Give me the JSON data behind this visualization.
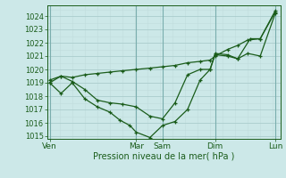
{
  "title": "",
  "xlabel": "Pression niveau de la mer( hPa )",
  "bg_color": "#cce8e8",
  "grid_color_major": "#aacccc",
  "grid_color_minor": "#c0dcdc",
  "line_color": "#1a5c1a",
  "ylim": [
    1014.8,
    1024.8
  ],
  "xlim": [
    0,
    9.3
  ],
  "ytick_vals": [
    1015,
    1016,
    1017,
    1018,
    1019,
    1020,
    1021,
    1022,
    1023,
    1024
  ],
  "xtick_labels": [
    "Ven",
    "Mar",
    "Sam",
    "Dim",
    "Lun"
  ],
  "xtick_positions": [
    0.1,
    3.55,
    4.6,
    6.7,
    9.1
  ],
  "vline_positions": [
    0.1,
    3.55,
    4.6,
    6.7,
    9.1
  ],
  "line1_x": [
    0.1,
    0.55,
    1.0,
    1.5,
    2.0,
    2.5,
    2.9,
    3.3,
    3.55,
    4.1,
    4.6,
    5.1,
    5.6,
    6.1,
    6.5,
    6.7,
    7.2,
    7.6,
    8.0,
    8.5,
    9.1
  ],
  "line1_y": [
    1019.0,
    1018.2,
    1019.0,
    1017.8,
    1017.2,
    1016.8,
    1016.2,
    1015.8,
    1015.3,
    1014.9,
    1015.8,
    1016.1,
    1017.0,
    1019.2,
    1020.0,
    1021.1,
    1021.0,
    1020.8,
    1021.2,
    1021.0,
    1024.2
  ],
  "line2_x": [
    0.1,
    0.55,
    1.0,
    1.5,
    2.0,
    2.5,
    3.0,
    3.55,
    4.1,
    4.6,
    5.1,
    5.6,
    6.1,
    6.5,
    6.7,
    7.2,
    7.6,
    8.1,
    8.5,
    9.1
  ],
  "line2_y": [
    1019.0,
    1019.5,
    1019.1,
    1018.5,
    1017.7,
    1017.5,
    1017.4,
    1017.2,
    1016.5,
    1016.3,
    1017.5,
    1019.6,
    1020.0,
    1020.0,
    1021.2,
    1021.1,
    1020.8,
    1022.3,
    1022.3,
    1024.3
  ],
  "line3_x": [
    0.1,
    0.55,
    1.0,
    1.5,
    2.0,
    2.5,
    3.0,
    3.55,
    4.1,
    4.6,
    5.1,
    5.6,
    6.1,
    6.5,
    6.7,
    7.2,
    7.6,
    8.0,
    8.5,
    9.1
  ],
  "line3_y": [
    1019.2,
    1019.5,
    1019.4,
    1019.6,
    1019.7,
    1019.8,
    1019.9,
    1020.0,
    1020.1,
    1020.2,
    1020.3,
    1020.5,
    1020.6,
    1020.7,
    1021.0,
    1021.5,
    1021.8,
    1022.2,
    1022.3,
    1024.4
  ]
}
